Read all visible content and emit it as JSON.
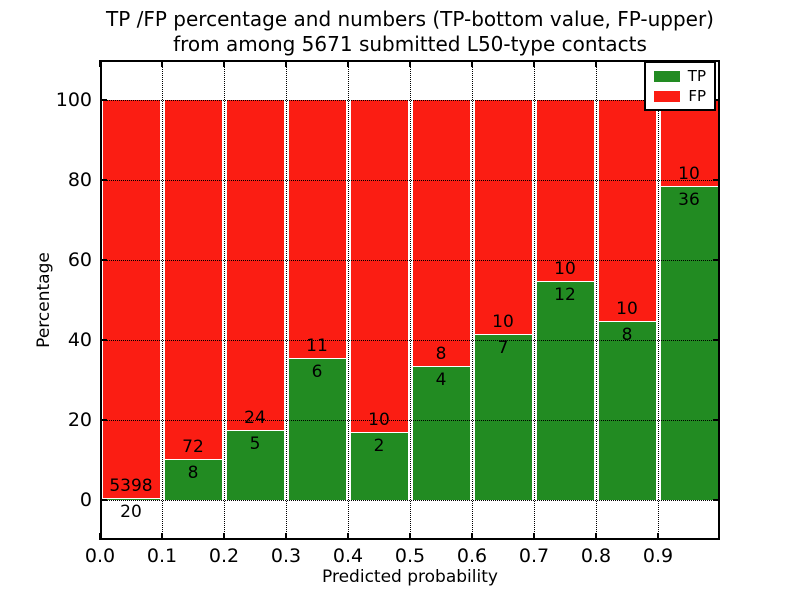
{
  "title": {
    "line1": "TP /FP percentage and numbers (TP-bottom value, FP-upper)",
    "line2": "from among 5671 submitted L50-type contacts"
  },
  "axes": {
    "x_label": "Predicted probability",
    "y_label": "Percentage"
  },
  "legend": {
    "position": "upper-right",
    "items": [
      {
        "label": "TP",
        "color": "#228b22"
      },
      {
        "label": "FP",
        "color": "#fb1d13"
      }
    ]
  },
  "chart_data": {
    "type": "bar",
    "stacked": true,
    "normalized": "each bin stack scaled to 100%",
    "title": "TP /FP percentage and numbers (TP-bottom value, FP-upper) from among 5671 submitted L50-type contacts",
    "xlabel": "Predicted probability",
    "ylabel": "Percentage",
    "xlim": [
      0.0,
      1.0
    ],
    "ylim": [
      -10,
      110
    ],
    "x_tick_labels": [
      "0.0",
      "0.1",
      "0.2",
      "0.3",
      "0.4",
      "0.5",
      "0.6",
      "0.7",
      "0.8",
      "0.9"
    ],
    "y_ticks": [
      0,
      20,
      40,
      60,
      80,
      100
    ],
    "grid": "dotted-black-both-axes",
    "total_contacts": 5671,
    "categories": [
      "0.0-0.1",
      "0.1-0.2",
      "0.2-0.3",
      "0.3-0.4",
      "0.4-0.5",
      "0.5-0.6",
      "0.6-0.7",
      "0.7-0.8",
      "0.8-0.9",
      "0.9-1.0"
    ],
    "series": [
      {
        "name": "TP",
        "color": "#228b22",
        "counts": [
          20,
          8,
          5,
          6,
          2,
          4,
          7,
          12,
          8,
          36
        ],
        "percent": [
          0.37,
          10.0,
          17.24,
          35.29,
          16.67,
          33.33,
          41.18,
          54.55,
          44.44,
          78.26
        ]
      },
      {
        "name": "FP",
        "color": "#fb1d13",
        "counts": [
          5398,
          72,
          24,
          11,
          10,
          8,
          10,
          10,
          10,
          10
        ],
        "percent": [
          99.63,
          90.0,
          82.76,
          64.71,
          83.33,
          66.67,
          58.82,
          45.45,
          55.56,
          21.74
        ]
      }
    ]
  },
  "colors": {
    "tp": "#228b22",
    "fp": "#fb1d13",
    "grid": "#000000",
    "frame": "#000000",
    "text": "#000000",
    "background": "#ffffff"
  }
}
